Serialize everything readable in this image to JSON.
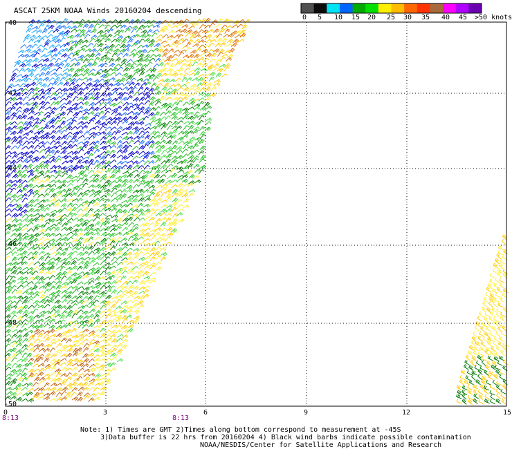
{
  "title": "ASCAT 25KM NOAA Winds 20160204 descending",
  "color_scale": {
    "colors": [
      "#505050",
      "#0c0c0c",
      "#00e4f5",
      "#0066ff",
      "#00aa00",
      "#00e000",
      "#ffee00",
      "#ffbb00",
      "#ff6600",
      "#ff3300",
      "#a86a3c",
      "#ff00ff",
      "#b000ff",
      "#6a00b0"
    ],
    "labels": [
      "0",
      "5",
      "10",
      "15",
      "20",
      "25",
      "30",
      "35",
      "40",
      "45",
      ">50 knots"
    ]
  },
  "lat_labels": [
    "-40",
    "-42",
    "-44",
    "-46",
    "-48",
    "-50"
  ],
  "lon_labels": [
    "0",
    "3",
    "6",
    "9",
    "12",
    "15"
  ],
  "time_labels": [
    "8:13",
    "8:13"
  ],
  "notes": {
    "line1": "Note: 1) Times are GMT 2)Times along bottom correspond to measurement at -45S",
    "line2": "3)Data buffer is 22 hrs from 20160204 4) Black wind barbs indicate possible contamination",
    "line3": "NOAA/NESDIS/Center for Satellite Applications and Research"
  },
  "map": {
    "lon_range": [
      0,
      15
    ],
    "lat_range": [
      -50,
      -40
    ],
    "barb_colors": {
      "dark_blue": "#0000cc",
      "blue": "#1e6fff",
      "cyan": "#1aa7ff",
      "dark_green": "#007a00",
      "green": "#22bb22",
      "light_green": "#44dd44",
      "yellow": "#ffee33",
      "gold": "#ffcc00",
      "orange": "#e07000",
      "brown": "#c06010"
    }
  }
}
